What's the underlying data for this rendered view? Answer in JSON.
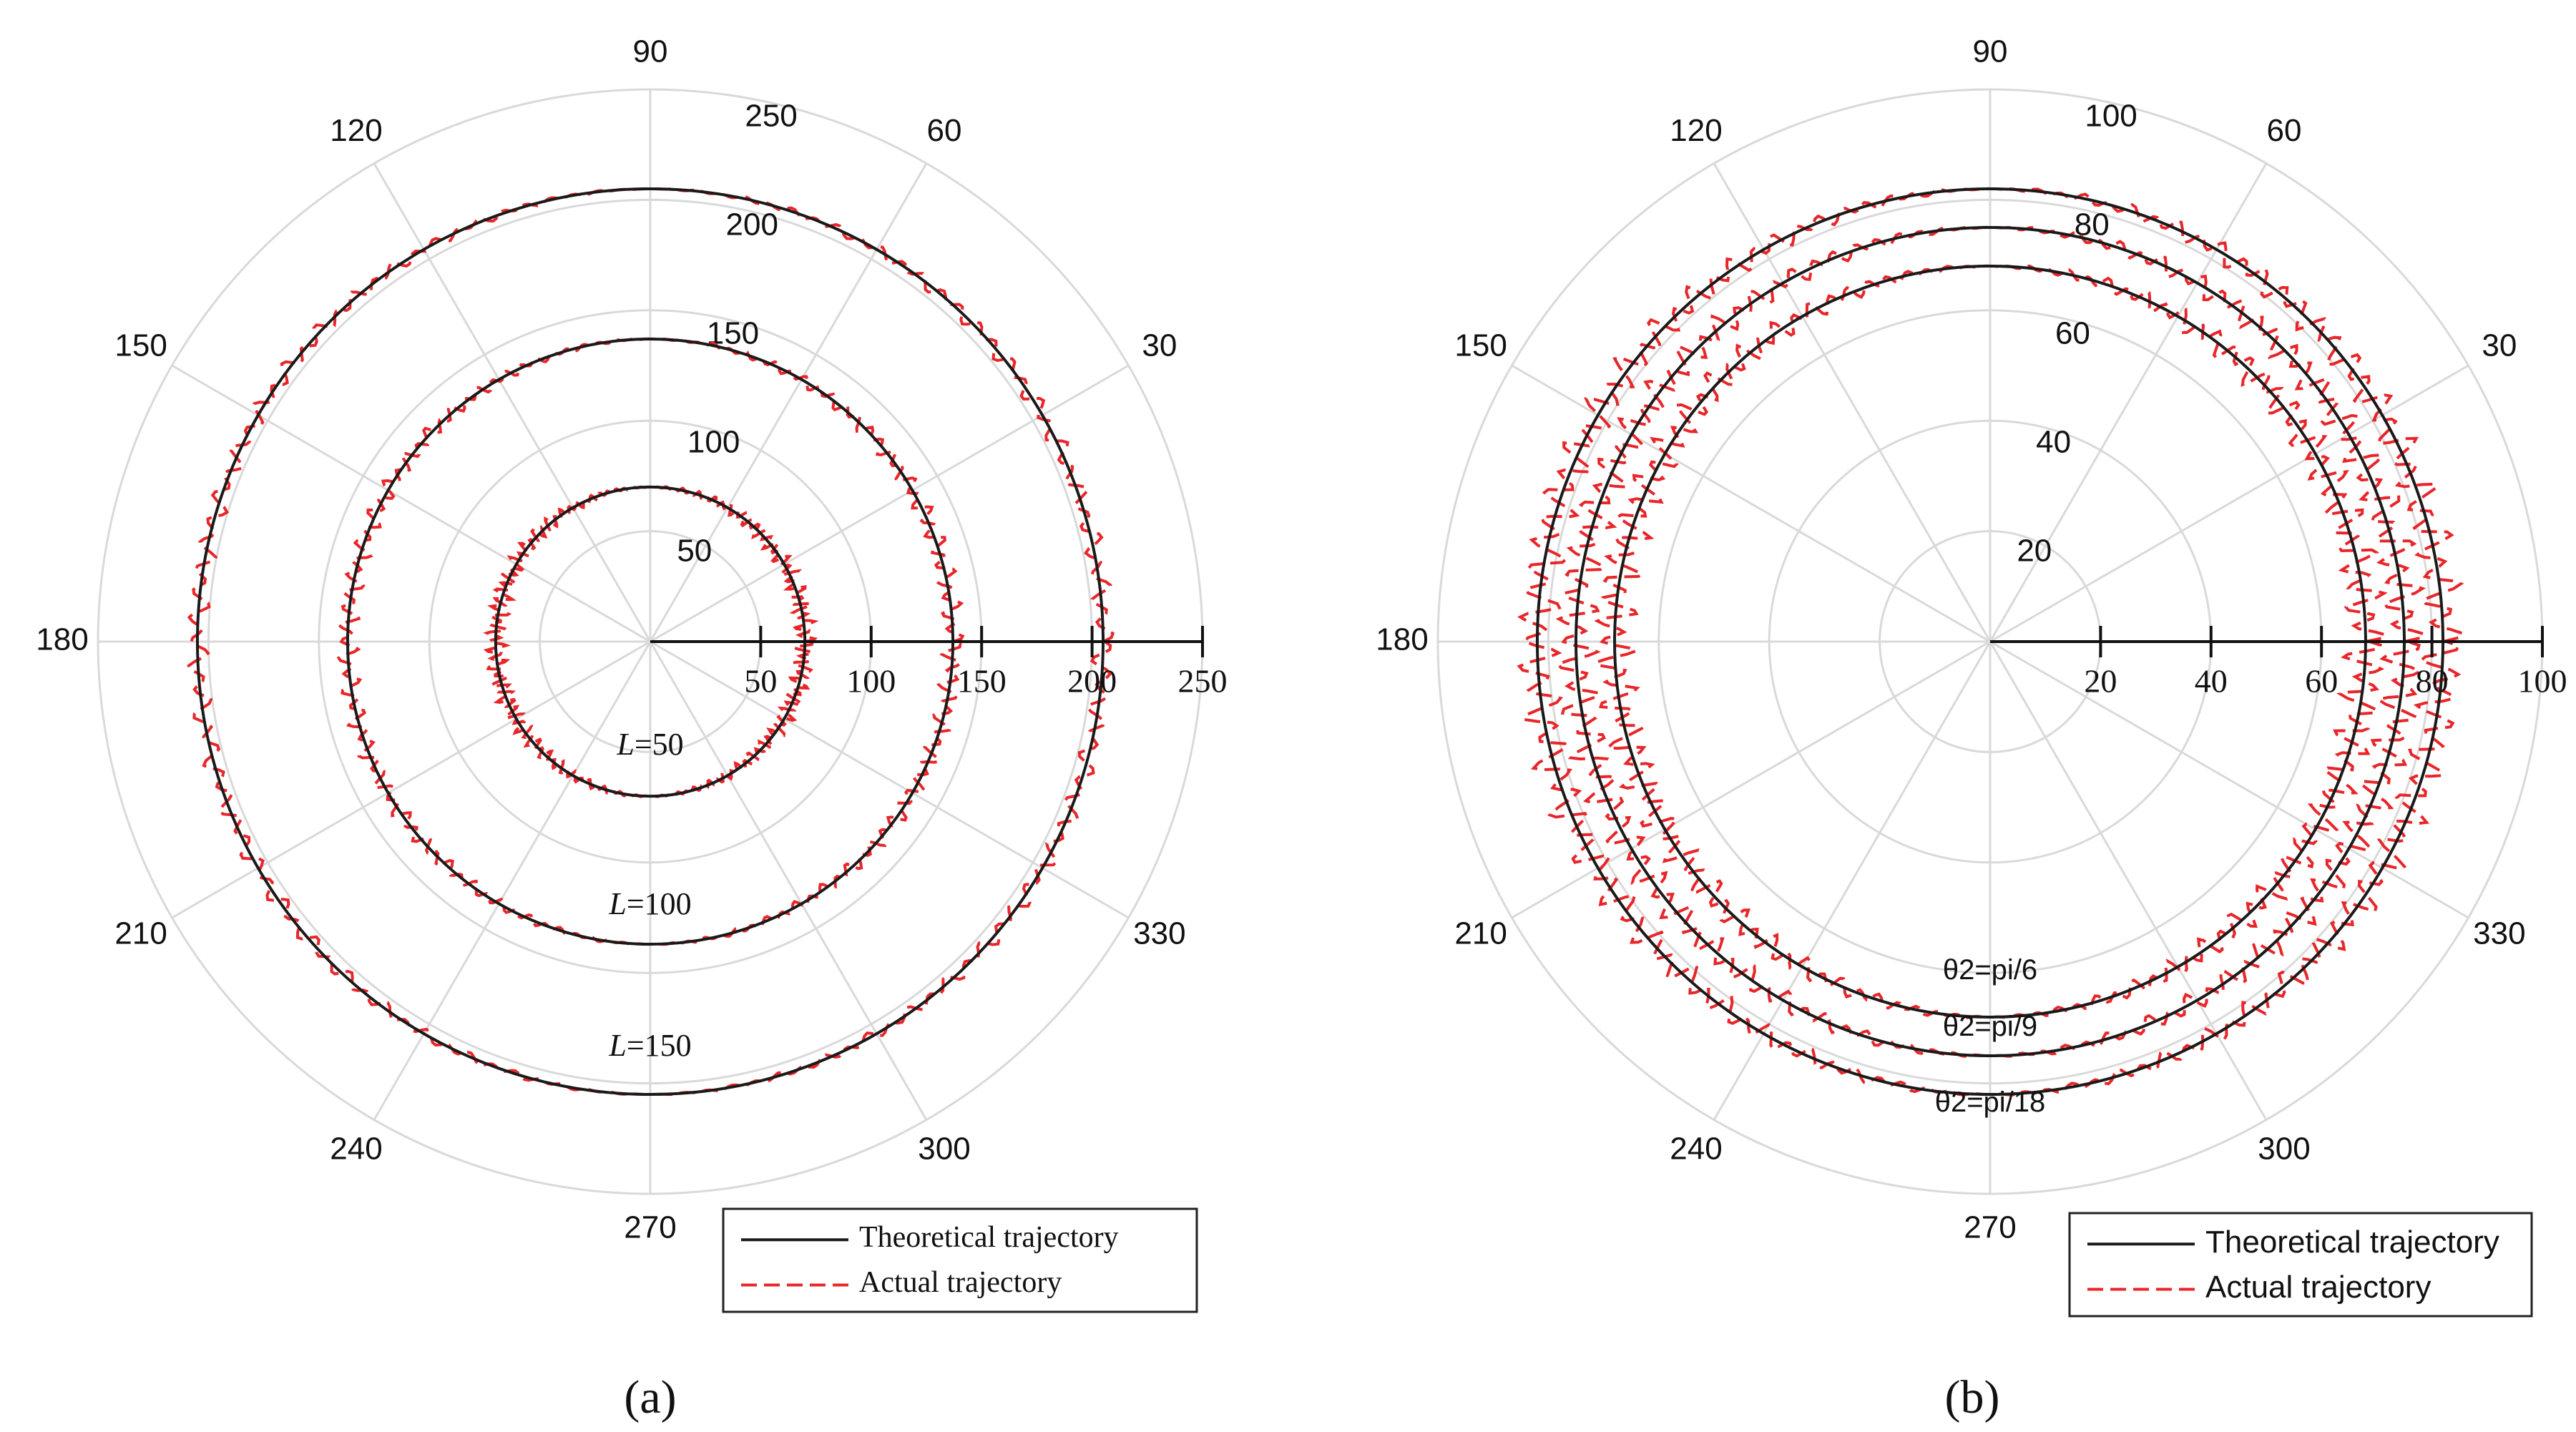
{
  "chart_data": [
    {
      "type": "polar-line",
      "panel_label": "(a)",
      "angle_ticks": [
        "0",
        "30",
        "60",
        "90",
        "120",
        "150",
        "180",
        "210",
        "240",
        "270",
        "300",
        "330"
      ],
      "visible_angle_labels": [
        "30",
        "60",
        "90",
        "120",
        "150",
        "180",
        "210",
        "240",
        "270",
        "300",
        "330"
      ],
      "rlim": [
        0,
        250
      ],
      "r_tick_values": [
        50,
        100,
        150,
        200,
        250
      ],
      "r_tick_labels": [
        "50",
        "100",
        "150",
        "200",
        "250"
      ],
      "axis_tick_values": [
        50,
        100,
        150,
        200,
        250
      ],
      "axis_tick_labels": [
        "50",
        "100",
        "150",
        "200",
        "250"
      ],
      "grid": true,
      "series": [
        {
          "name": "Theoretical trajectory",
          "style": "solid",
          "color": "#1a1a1a",
          "curves": [
            {
              "label": "L=50",
              "center_x": 0,
              "radius": 70
            },
            {
              "label": "L=100",
              "center_x": 0,
              "radius": 137
            },
            {
              "label": "L=150",
              "center_x": 0,
              "radius": 205
            }
          ]
        },
        {
          "name": "Actual trajectory",
          "style": "dashed",
          "color": "#e8262a",
          "noise_amplitude": 5,
          "noise_band_start": 10,
          "noise_band_end": 60
        }
      ],
      "annotations": [
        {
          "prefix": "L",
          "value": "=50"
        },
        {
          "prefix": "L",
          "value": "=100"
        },
        {
          "prefix": "L",
          "value": "=150"
        }
      ],
      "legend": {
        "position": "bottom-right",
        "entries": [
          "Theoretical trajectory",
          "Actual trajectory"
        ]
      }
    },
    {
      "type": "polar-line",
      "panel_label": "(b)",
      "angle_ticks": [
        "0",
        "30",
        "60",
        "90",
        "120",
        "150",
        "180",
        "210",
        "240",
        "270",
        "300",
        "330"
      ],
      "visible_angle_labels": [
        "30",
        "60",
        "90",
        "120",
        "150",
        "180",
        "210",
        "240",
        "270",
        "300",
        "330"
      ],
      "rlim": [
        0,
        100
      ],
      "r_tick_values": [
        20,
        40,
        60,
        80,
        100
      ],
      "r_tick_labels": [
        "20",
        "40",
        "60",
        "80",
        "100"
      ],
      "axis_tick_values": [
        20,
        40,
        60,
        80,
        100
      ],
      "axis_tick_labels": [
        "20",
        "40",
        "60",
        "80",
        "100"
      ],
      "grid": true,
      "series": [
        {
          "name": "Theoretical trajectory",
          "style": "solid",
          "color": "#1a1a1a",
          "curves": [
            {
              "label": "θ2=pi/6",
              "center_x": 0,
              "radius": 68
            },
            {
              "label": "θ2=pi/9",
              "center_x": 0,
              "radius": 75
            },
            {
              "label": "θ2=pi/18",
              "center_x": 0,
              "radius": 82
            }
          ]
        },
        {
          "name": "Actual trajectory",
          "style": "dashed",
          "color": "#e8262a",
          "noise_amplitude": 4,
          "noise_band_start": 5,
          "noise_band_end": 60
        }
      ],
      "annotations": [
        {
          "prefix": "",
          "value": "θ2=pi/6"
        },
        {
          "prefix": "",
          "value": "θ2=pi/9"
        },
        {
          "prefix": "",
          "value": "θ2=pi/18"
        }
      ],
      "legend": {
        "position": "bottom-right",
        "entries": [
          "Theoretical trajectory",
          "Actual trajectory"
        ]
      }
    }
  ]
}
